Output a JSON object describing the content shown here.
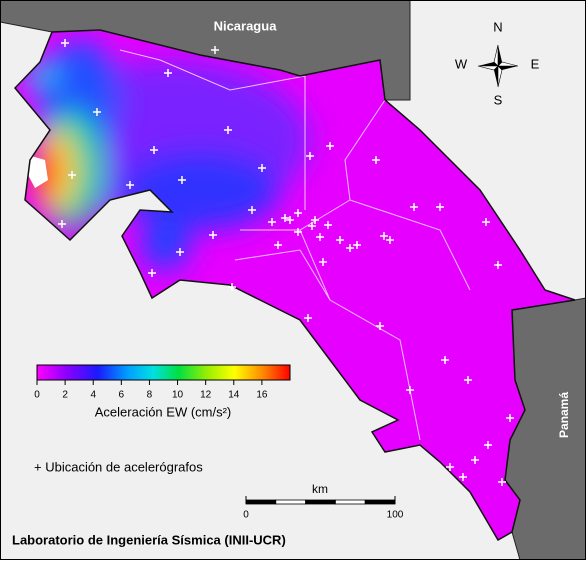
{
  "labels": {
    "nicaragua": "Nicaragua",
    "panama": "Panamá"
  },
  "compass": {
    "n": "N",
    "w": "W",
    "e": "E",
    "s": "S"
  },
  "colorbar": {
    "lim": [
      0,
      18
    ],
    "ticks": [
      0,
      2,
      4,
      6,
      8,
      10,
      12,
      14,
      16
    ],
    "label": "Aceleración EW (cm/s²)"
  },
  "legend": "+ Ubicación de acelerógrafos",
  "scale_bar": {
    "unit": "km",
    "ticks": [
      0,
      100
    ]
  },
  "footer": "Laboratorio de Ingeniería Sísmica (INII-UCR)"
}
